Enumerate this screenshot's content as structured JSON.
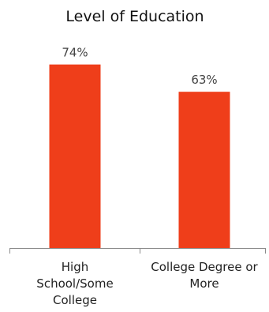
{
  "chart_data": {
    "type": "bar",
    "title": "Level of Education",
    "categories": [
      "High School/Some College",
      "College Degree or More"
    ],
    "category_lines": [
      [
        "High",
        "School/Some",
        "College"
      ],
      [
        "College Degree or",
        "More"
      ]
    ],
    "values": [
      74,
      63
    ],
    "data_labels": [
      "74%",
      "63%"
    ],
    "ylim": [
      0,
      100
    ],
    "grid": false,
    "legend": "none",
    "bar_color": "#EF3E1A",
    "axis_color": "#8a8a8a"
  }
}
